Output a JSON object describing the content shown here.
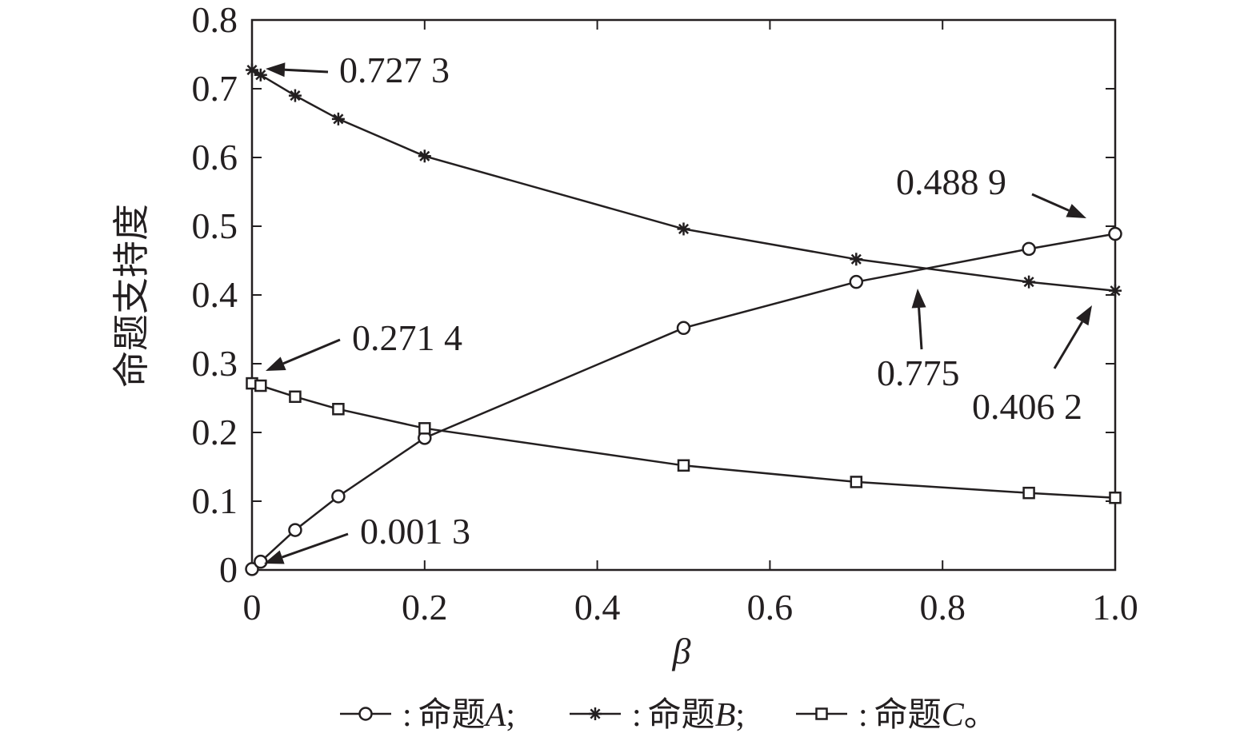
{
  "chart_data": {
    "type": "line",
    "title": "",
    "xlabel": "β",
    "ylabel": "命题支持度",
    "xlim": [
      0,
      1.0
    ],
    "ylim": [
      0,
      0.8
    ],
    "x_ticks": [
      "0",
      "0.2",
      "0.4",
      "0.6",
      "0.8",
      "1.0"
    ],
    "y_ticks": [
      "0",
      "0.1",
      "0.2",
      "0.3",
      "0.4",
      "0.5",
      "0.6",
      "0.7",
      "0.8"
    ],
    "grid": false,
    "series": [
      {
        "name": "命题A",
        "marker": "circle",
        "x": [
          0,
          0.01,
          0.05,
          0.1,
          0.2,
          0.5,
          0.7,
          0.9,
          1.0
        ],
        "y": [
          0.0013,
          0.012,
          0.058,
          0.107,
          0.192,
          0.352,
          0.419,
          0.467,
          0.4889
        ]
      },
      {
        "name": "命题B",
        "marker": "star",
        "x": [
          0,
          0.01,
          0.05,
          0.1,
          0.2,
          0.5,
          0.7,
          0.9,
          1.0
        ],
        "y": [
          0.7273,
          0.72,
          0.69,
          0.656,
          0.602,
          0.496,
          0.452,
          0.419,
          0.4062
        ]
      },
      {
        "name": "命题C",
        "marker": "square",
        "x": [
          0,
          0.01,
          0.05,
          0.1,
          0.2,
          0.5,
          0.7,
          0.9,
          1.0
        ],
        "y": [
          0.2714,
          0.268,
          0.252,
          0.234,
          0.206,
          0.152,
          0.128,
          0.112,
          0.105
        ]
      }
    ],
    "annotations": [
      {
        "text": "0.727 3",
        "point": [
          0.0,
          0.7273
        ]
      },
      {
        "text": "0.271 4",
        "point": [
          0.0,
          0.2714
        ]
      },
      {
        "text": "0.001 3",
        "point": [
          0.0,
          0.0013
        ]
      },
      {
        "text": "0.488 9",
        "point": [
          1.0,
          0.4889
        ]
      },
      {
        "text": "0.775",
        "point": [
          0.775,
          0.44
        ]
      },
      {
        "text": "0.406 2",
        "point": [
          1.0,
          0.4062
        ]
      }
    ],
    "legend": {
      "placement": "bottom",
      "entries": [
        {
          "sep": ":",
          "label": "命题",
          "italic": "A",
          "end": ";"
        },
        {
          "sep": ":",
          "label": "命题",
          "italic": "B",
          "end": ";"
        },
        {
          "sep": ":",
          "label": "命题",
          "italic": "C",
          "end": "。"
        }
      ]
    }
  }
}
